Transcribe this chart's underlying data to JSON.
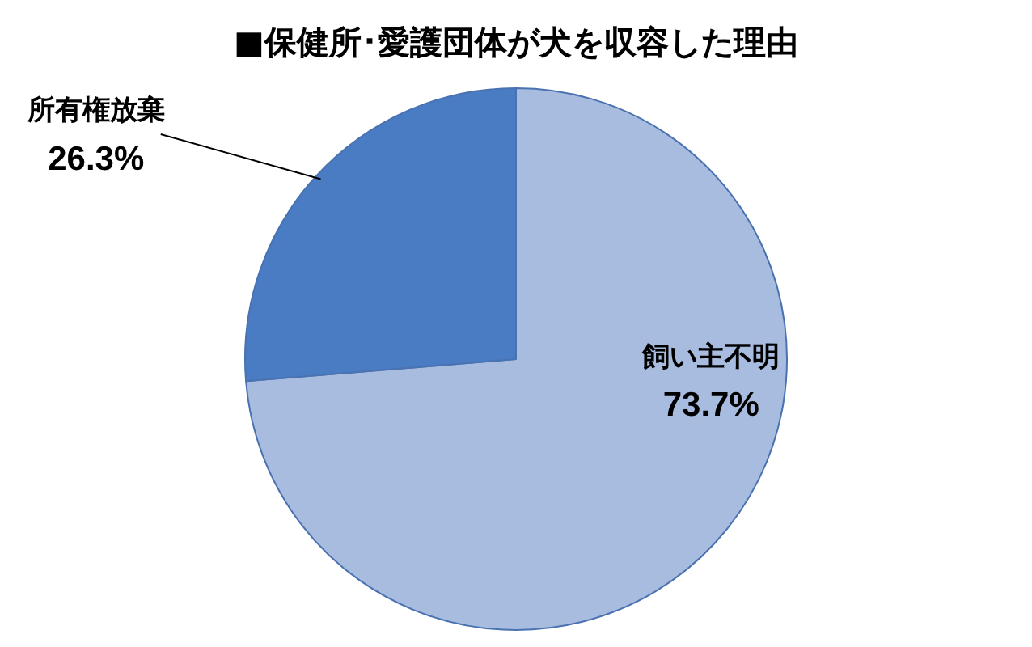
{
  "chart_data": {
    "type": "pie",
    "title": "■保健所･愛護団体が犬を収容した理由",
    "categories": [
      "飼い主不明",
      "所有権放棄"
    ],
    "values": [
      73.7,
      26.3
    ],
    "value_labels": [
      "73.7%",
      "26.3%"
    ],
    "colors": [
      "#a8bcdf",
      "#4a7cc4"
    ],
    "legend": false
  }
}
